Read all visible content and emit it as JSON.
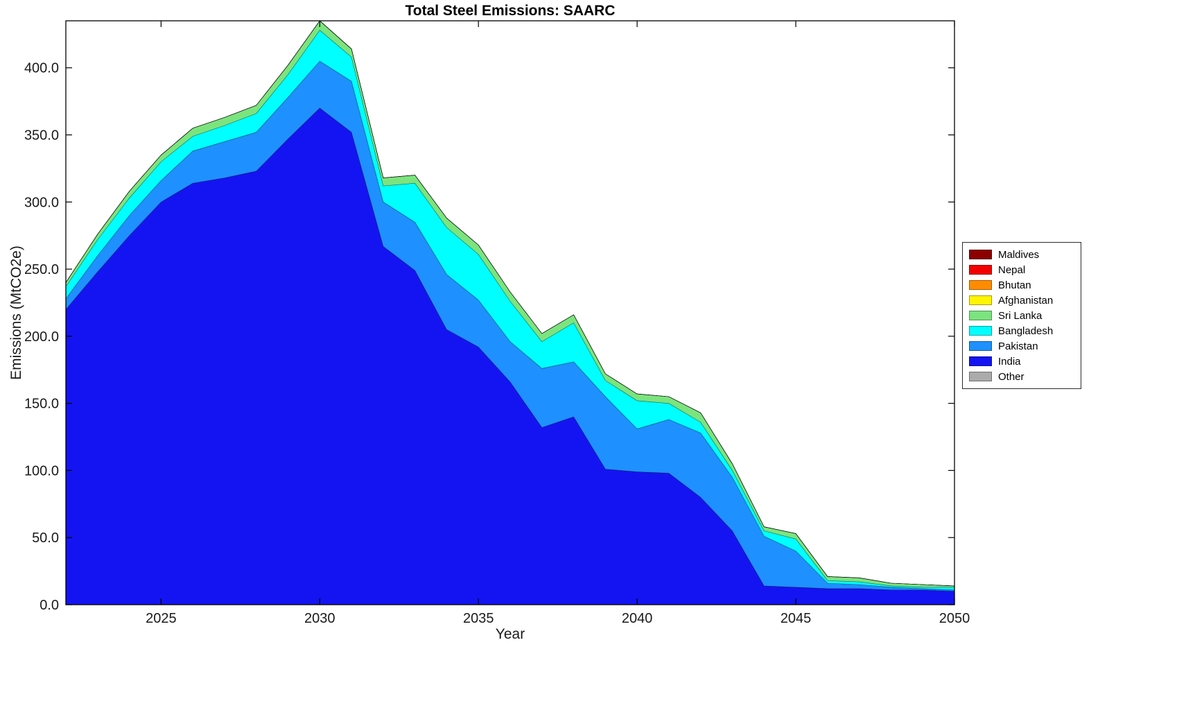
{
  "chart_data": {
    "type": "area",
    "title": "Total Steel Emissions: SAARC",
    "xlabel": "Year",
    "ylabel": "Emissions (MtCO2e)",
    "xlim": [
      2022,
      2050
    ],
    "ylim": [
      0,
      435
    ],
    "grid": false,
    "legend_position": "right-outside",
    "xticks": [
      2025,
      2030,
      2035,
      2040,
      2045,
      2050
    ],
    "ytick_values": [
      0,
      50,
      100,
      150,
      200,
      250,
      300,
      350,
      400
    ],
    "ytick_labels": [
      "0.0",
      "50.0",
      "100.0",
      "150.0",
      "200.0",
      "250.0",
      "300.0",
      "350.0",
      "400.0"
    ],
    "x": [
      2022,
      2023,
      2024,
      2025,
      2026,
      2027,
      2028,
      2029,
      2030,
      2031,
      2032,
      2033,
      2034,
      2035,
      2036,
      2037,
      2038,
      2039,
      2040,
      2041,
      2042,
      2043,
      2044,
      2045,
      2046,
      2047,
      2048,
      2049,
      2050
    ],
    "stack_order": [
      "India",
      "Pakistan",
      "Bangladesh",
      "Sri Lanka",
      "Afghanistan",
      "Bhutan",
      "Nepal",
      "Maldives",
      "Other"
    ],
    "series": [
      {
        "name": "Maldives",
        "color": "#8C0000",
        "values": [
          0,
          0,
          0,
          0,
          0,
          0,
          0,
          0,
          0,
          0,
          0,
          0,
          0,
          0,
          0,
          0,
          0,
          0,
          0,
          0,
          0,
          0,
          0,
          0,
          0,
          0,
          0,
          0,
          0
        ]
      },
      {
        "name": "Nepal",
        "color": "#F20000",
        "values": [
          0,
          0,
          0,
          0,
          0,
          0,
          0,
          0,
          0,
          0,
          0,
          0,
          0,
          0,
          0,
          0,
          0,
          0,
          0,
          0,
          0,
          0,
          0,
          0,
          0,
          0,
          0,
          0,
          0
        ]
      },
      {
        "name": "Bhutan",
        "color": "#FF8C00",
        "values": [
          0,
          0,
          0,
          0,
          0,
          0,
          0,
          0,
          0,
          0,
          0,
          0,
          0,
          0,
          0,
          0,
          0,
          0,
          0,
          0,
          0,
          0,
          0,
          0,
          0,
          0,
          0,
          0,
          0
        ]
      },
      {
        "name": "Afghanistan",
        "color": "#FFF500",
        "values": [
          0,
          0,
          0,
          0,
          0,
          0,
          0,
          0,
          0,
          0,
          0,
          0,
          0,
          0,
          0,
          0,
          0,
          0,
          0,
          0,
          0,
          0,
          0,
          0,
          0,
          0,
          0,
          0,
          0
        ]
      },
      {
        "name": "Sri Lanka",
        "color": "#7BE47E",
        "values": [
          3,
          4,
          5,
          5,
          6,
          6,
          6,
          7,
          7,
          6,
          6,
          6,
          7,
          7,
          7,
          6,
          6,
          5,
          5,
          5,
          7,
          5,
          3,
          4,
          3,
          3,
          2,
          2,
          1
        ]
      },
      {
        "name": "Bangladesh",
        "color": "#00FFFF",
        "values": [
          9,
          12,
          13,
          14,
          11,
          12,
          14,
          17,
          23,
          18,
          12,
          29,
          35,
          34,
          30,
          20,
          29,
          12,
          21,
          12,
          8,
          5,
          4,
          9,
          2,
          2,
          1,
          1,
          2
        ]
      },
      {
        "name": "Pakistan",
        "color": "#1E90FF",
        "values": [
          8,
          12,
          15,
          16,
          24,
          27,
          29,
          31,
          35,
          38,
          33,
          36,
          41,
          35,
          30,
          44,
          41,
          54,
          32,
          40,
          48,
          40,
          37,
          27,
          4,
          3,
          2,
          1,
          1
        ]
      },
      {
        "name": "India",
        "color": "#1414F2",
        "values": [
          220,
          248,
          275,
          300,
          314,
          318,
          323,
          347,
          370,
          352,
          267,
          249,
          205,
          192,
          166,
          132,
          140,
          101,
          99,
          98,
          80,
          55,
          14,
          13,
          12,
          12,
          11,
          11,
          10
        ]
      },
      {
        "name": "Other",
        "color": "#ABABAB",
        "values": [
          0,
          0,
          0,
          0,
          0,
          0,
          0,
          0,
          0,
          0,
          0,
          0,
          0,
          0,
          0,
          0,
          0,
          0,
          0,
          0,
          0,
          0,
          0,
          0,
          0,
          0,
          0,
          0,
          0
        ]
      }
    ]
  }
}
